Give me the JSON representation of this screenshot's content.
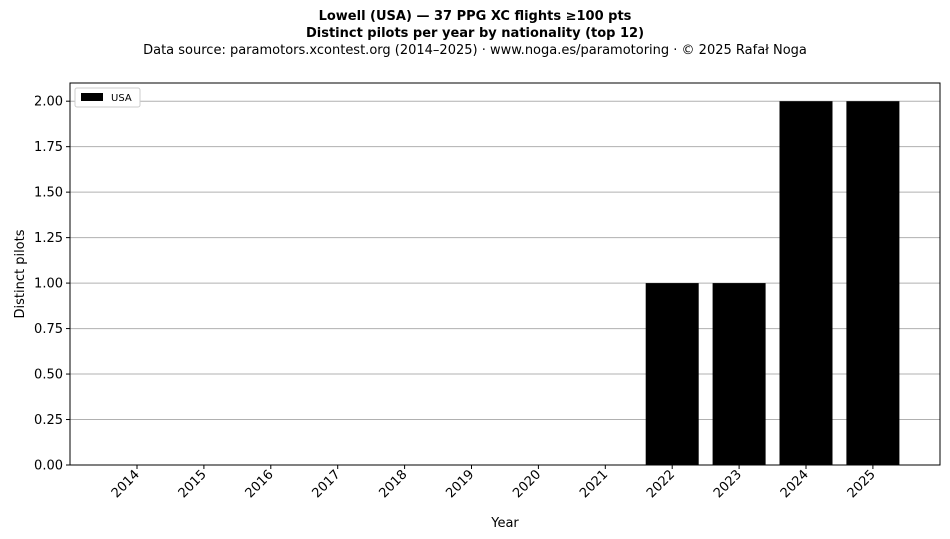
{
  "figure": {
    "title_line1": "Lowell (USA)  —  37 PPG XC flights ≥100 pts",
    "title_line2": "Distinct pilots per year by nationality (top 12)",
    "title_line3": "Data source: paramotors.xcontest.org (2014–2025)  ·  www.noga.es/paramotoring  ·  © 2025 Rafał Noga"
  },
  "chart_data": {
    "type": "bar",
    "title": "Distinct pilots per year by nationality (top 12)",
    "xlabel": "Year",
    "ylabel": "Distinct pilots",
    "categories": [
      "2014",
      "2015",
      "2016",
      "2017",
      "2018",
      "2019",
      "2020",
      "2021",
      "2022",
      "2023",
      "2024",
      "2025"
    ],
    "series": [
      {
        "name": "USA",
        "values": [
          0,
          0,
          0,
          0,
          0,
          0,
          0,
          0,
          1,
          1,
          2,
          2
        ],
        "color": "#000000"
      }
    ],
    "ylim": [
      0,
      2.1
    ],
    "yticks": [
      0,
      0.25,
      0.5,
      0.75,
      1.0,
      1.25,
      1.5,
      1.75,
      2.0
    ],
    "ytick_labels": [
      "0.00",
      "0.25",
      "0.50",
      "0.75",
      "1.00",
      "1.25",
      "1.50",
      "1.75",
      "2.00"
    ],
    "grid": "y",
    "legend_position": "top-left",
    "gridline_color": "#b0b0b0"
  }
}
